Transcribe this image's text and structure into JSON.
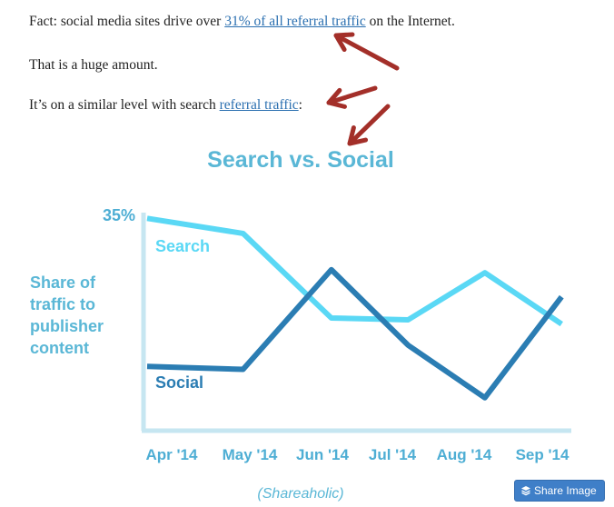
{
  "article": {
    "p1_before": "Fact: social media sites drive over ",
    "p1_link": "31% of all referral traffic",
    "p1_after": " on the Internet.",
    "p2": "That is a huge amount.",
    "p3_before": "It’s on a similar level with search ",
    "p3_link": "referral traffic",
    "p3_after": ":"
  },
  "chart_data": {
    "type": "line",
    "title": "Search vs. Social",
    "ylabel": "Share of traffic to publisher content",
    "ylabel_lines": [
      "Share of",
      "traffic to",
      "publisher",
      "content"
    ],
    "y_top_label": "35%",
    "ylim": [
      0,
      37
    ],
    "grid": false,
    "categories": [
      "Apr '14",
      "May '14",
      "Jun '14",
      "Jul '14",
      "Aug '14",
      "Sep '14"
    ],
    "x_positions": [
      0,
      1,
      2,
      3,
      4,
      5,
      6
    ],
    "series": [
      {
        "name": "Search",
        "color": "#5ad8f5",
        "x": [
          0,
          1.25,
          2.4,
          3.4,
          4.4,
          5.4
        ],
        "values": [
          35,
          32.5,
          18.5,
          18.2,
          26,
          17.5
        ]
      },
      {
        "name": "Social",
        "color": "#2b7db3",
        "x": [
          0,
          1.25,
          2.4,
          3.4,
          4.4,
          5.4
        ],
        "values": [
          10.5,
          10,
          26.5,
          14,
          5.3,
          22
        ]
      }
    ],
    "source": "(Shareaholic)"
  },
  "colors": {
    "axis": "#c6e6f1",
    "title": "#5ab7d6",
    "ylabel": "#5ab7d6",
    "tick": "#4eaed4",
    "source": "#5ab7d6",
    "arrow": "#a32f29"
  },
  "share_button": {
    "label": "Share Image",
    "icon": "layers-icon"
  }
}
